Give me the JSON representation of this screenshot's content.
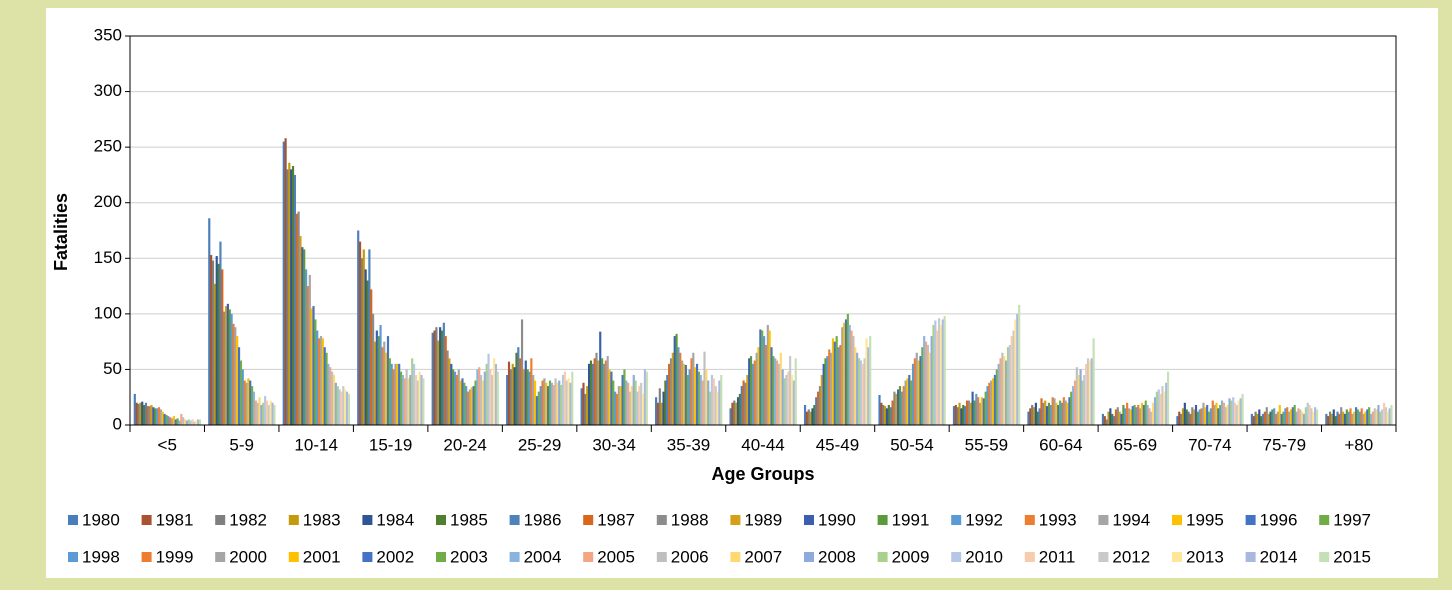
{
  "chart_data": {
    "type": "bar",
    "x_label": "Age Groups",
    "y_label": "Fatalities",
    "categories": [
      "<5",
      "5-9",
      "10-14",
      "15-19",
      "20-24",
      "25-29",
      "30-34",
      "35-39",
      "40-44",
      "45-49",
      "50-54",
      "55-59",
      "60-64",
      "65-69",
      "70-74",
      "75-79",
      "+80"
    ],
    "ylim": [
      0,
      350
    ],
    "yticks": [
      0,
      50,
      100,
      150,
      200,
      250,
      300,
      350
    ],
    "grid": true,
    "legend": "bottom",
    "series": [
      {
        "name": "1980",
        "color": "#4a7ebb",
        "values": [
          28,
          186,
          255,
          175,
          83,
          45,
          33,
          25,
          15,
          18,
          27,
          17,
          12,
          10,
          8,
          10,
          10
        ]
      },
      {
        "name": "1981",
        "color": "#a9522f",
        "values": [
          20,
          153,
          258,
          165,
          85,
          57,
          38,
          20,
          20,
          12,
          20,
          18,
          15,
          8,
          12,
          8,
          8
        ]
      },
      {
        "name": "1982",
        "color": "#7f7f7f",
        "values": [
          19,
          148,
          230,
          150,
          88,
          50,
          28,
          33,
          22,
          14,
          18,
          16,
          18,
          5,
          10,
          12,
          12
        ]
      },
      {
        "name": "1983",
        "color": "#c49a0c",
        "values": [
          20,
          127,
          236,
          158,
          76,
          55,
          35,
          20,
          20,
          12,
          17,
          20,
          16,
          12,
          15,
          10,
          10
        ]
      },
      {
        "name": "1984",
        "color": "#2f5597",
        "values": [
          21,
          152,
          230,
          140,
          88,
          52,
          55,
          30,
          25,
          15,
          15,
          15,
          20,
          15,
          20,
          14,
          14
        ]
      },
      {
        "name": "1985",
        "color": "#4f7f2f",
        "values": [
          18,
          145,
          233,
          130,
          85,
          65,
          58,
          40,
          28,
          18,
          18,
          18,
          12,
          10,
          14,
          8,
          8
        ]
      },
      {
        "name": "1986",
        "color": "#4f81bd",
        "values": [
          20,
          165,
          225,
          158,
          92,
          70,
          55,
          45,
          35,
          25,
          16,
          17,
          15,
          8,
          12,
          10,
          12
        ]
      },
      {
        "name": "1987",
        "color": "#d9661c",
        "values": [
          17,
          140,
          190,
          122,
          80,
          60,
          60,
          55,
          40,
          30,
          22,
          22,
          24,
          14,
          10,
          12,
          10
        ]
      },
      {
        "name": "1988",
        "color": "#8c8c8c",
        "values": [
          17,
          102,
          192,
          100,
          67,
          95,
          65,
          60,
          38,
          35,
          30,
          22,
          20,
          16,
          16,
          16,
          16
        ]
      },
      {
        "name": "1989",
        "color": "#d4a017",
        "values": [
          18,
          107,
          170,
          75,
          60,
          50,
          58,
          65,
          45,
          45,
          28,
          20,
          22,
          12,
          14,
          10,
          12
        ]
      },
      {
        "name": "1990",
        "color": "#3a5fb0",
        "values": [
          16,
          109,
          160,
          85,
          55,
          58,
          84,
          80,
          60,
          55,
          32,
          30,
          17,
          10,
          18,
          12,
          10
        ]
      },
      {
        "name": "1991",
        "color": "#5b9b3c",
        "values": [
          15,
          104,
          158,
          80,
          50,
          50,
          60,
          82,
          62,
          60,
          35,
          22,
          20,
          18,
          12,
          14,
          14
        ]
      },
      {
        "name": "1992",
        "color": "#5b9bd5",
        "values": [
          15,
          100,
          140,
          90,
          48,
          48,
          55,
          70,
          55,
          62,
          30,
          28,
          18,
          15,
          14,
          15,
          12
        ]
      },
      {
        "name": "1993",
        "color": "#ed7d31",
        "values": [
          16,
          91,
          125,
          70,
          45,
          60,
          58,
          65,
          58,
          68,
          35,
          25,
          25,
          20,
          15,
          10,
          15
        ]
      },
      {
        "name": "1994",
        "color": "#a5a5a5",
        "values": [
          14,
          88,
          135,
          75,
          50,
          45,
          62,
          58,
          65,
          65,
          40,
          20,
          24,
          15,
          20,
          12,
          10
        ]
      },
      {
        "name": "1995",
        "color": "#ffc000",
        "values": [
          12,
          80,
          105,
          65,
          40,
          40,
          50,
          55,
          70,
          78,
          42,
          25,
          20,
          14,
          16,
          18,
          12
        ]
      },
      {
        "name": "1996",
        "color": "#4472c4",
        "values": [
          10,
          70,
          107,
          80,
          42,
          26,
          48,
          54,
          86,
          75,
          45,
          24,
          18,
          17,
          18,
          10,
          16
        ]
      },
      {
        "name": "1997",
        "color": "#70ad47",
        "values": [
          9,
          58,
          95,
          60,
          38,
          30,
          40,
          45,
          85,
          80,
          40,
          30,
          22,
          18,
          12,
          12,
          14
        ]
      },
      {
        "name": "1998",
        "color": "#5b9bd5",
        "values": [
          8,
          50,
          85,
          55,
          35,
          35,
          30,
          50,
          80,
          70,
          55,
          35,
          20,
          16,
          15,
          15,
          12
        ]
      },
      {
        "name": "1999",
        "color": "#ed7d31",
        "values": [
          7,
          40,
          78,
          50,
          30,
          40,
          28,
          60,
          72,
          72,
          60,
          38,
          25,
          18,
          22,
          16,
          15
        ]
      },
      {
        "name": "2000",
        "color": "#a5a5a5",
        "values": [
          6,
          38,
          80,
          55,
          32,
          42,
          35,
          65,
          90,
          88,
          65,
          40,
          22,
          15,
          18,
          12,
          10
        ]
      },
      {
        "name": "2001",
        "color": "#ffc000",
        "values": [
          8,
          42,
          78,
          55,
          34,
          38,
          35,
          52,
          85,
          92,
          58,
          42,
          20,
          20,
          20,
          14,
          12
        ]
      },
      {
        "name": "2002",
        "color": "#4472c4",
        "values": [
          5,
          40,
          70,
          55,
          35,
          35,
          45,
          55,
          70,
          95,
          62,
          45,
          25,
          18,
          15,
          16,
          14
        ]
      },
      {
        "name": "2003",
        "color": "#70ad47",
        "values": [
          6,
          35,
          65,
          48,
          40,
          40,
          50,
          48,
          62,
          100,
          70,
          50,
          30,
          22,
          18,
          18,
          16
        ]
      },
      {
        "name": "2004",
        "color": "#8ab4e0",
        "values": [
          4,
          30,
          55,
          45,
          50,
          38,
          40,
          45,
          60,
          90,
          80,
          55,
          35,
          18,
          22,
          12,
          10
        ]
      },
      {
        "name": "2005",
        "color": "#f4a582",
        "values": [
          10,
          22,
          52,
          42,
          52,
          36,
          38,
          40,
          58,
          85,
          75,
          60,
          40,
          15,
          20,
          15,
          12
        ]
      },
      {
        "name": "2006",
        "color": "#bfbfbf",
        "values": [
          7,
          20,
          48,
          50,
          45,
          42,
          30,
          66,
          55,
          80,
          72,
          65,
          52,
          12,
          16,
          14,
          15
        ]
      },
      {
        "name": "2007",
        "color": "#ffd970",
        "values": [
          5,
          25,
          45,
          42,
          40,
          38,
          35,
          50,
          65,
          70,
          65,
          62,
          45,
          20,
          18,
          12,
          14
        ]
      },
      {
        "name": "2008",
        "color": "#8faadc",
        "values": [
          4,
          18,
          38,
          45,
          48,
          40,
          45,
          40,
          50,
          65,
          80,
          58,
          50,
          25,
          24,
          10,
          18
        ]
      },
      {
        "name": "2009",
        "color": "#a9d18e",
        "values": [
          5,
          20,
          35,
          60,
          55,
          36,
          40,
          30,
          42,
          60,
          90,
          70,
          40,
          30,
          22,
          16,
          12
        ]
      },
      {
        "name": "2010",
        "color": "#b4c7e7",
        "values": [
          4,
          26,
          32,
          55,
          64,
          45,
          30,
          45,
          45,
          58,
          94,
          72,
          45,
          32,
          25,
          20,
          14
        ]
      },
      {
        "name": "2011",
        "color": "#f8cbad",
        "values": [
          5,
          22,
          30,
          45,
          50,
          48,
          35,
          42,
          48,
          55,
          85,
          80,
          55,
          28,
          20,
          18,
          20
        ]
      },
      {
        "name": "2012",
        "color": "#c9c9c9",
        "values": [
          3,
          18,
          35,
          40,
          45,
          40,
          38,
          35,
          62,
          60,
          96,
          85,
          60,
          35,
          18,
          15,
          16
        ]
      },
      {
        "name": "2013",
        "color": "#ffe699",
        "values": [
          4,
          22,
          32,
          48,
          60,
          42,
          28,
          30,
          45,
          78,
          90,
          95,
          58,
          30,
          22,
          12,
          12
        ]
      },
      {
        "name": "2014",
        "color": "#a9b8de",
        "values": [
          5,
          20,
          30,
          45,
          55,
          38,
          50,
          40,
          40,
          70,
          95,
          100,
          60,
          38,
          24,
          16,
          15
        ]
      },
      {
        "name": "2015",
        "color": "#c5e0b4",
        "values": [
          5,
          18,
          28,
          42,
          48,
          48,
          48,
          45,
          60,
          80,
          98,
          108,
          78,
          48,
          28,
          14,
          18
        ]
      }
    ]
  }
}
